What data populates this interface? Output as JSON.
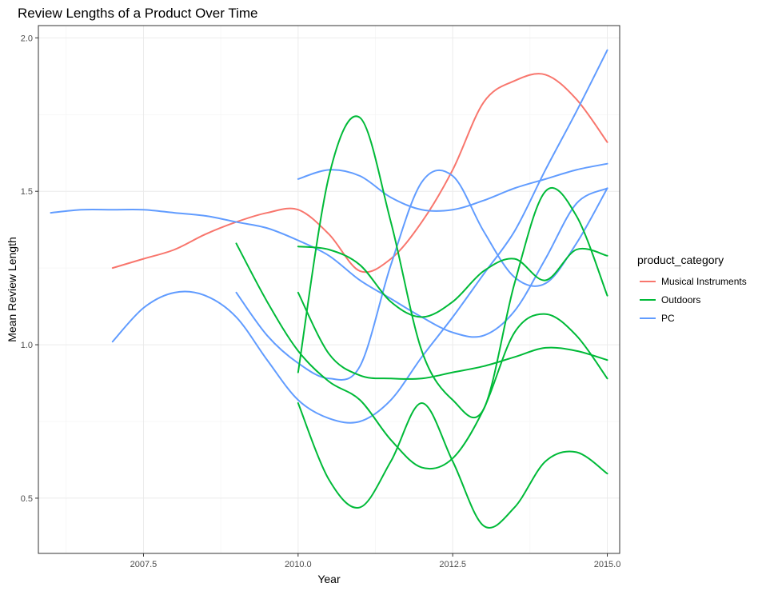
{
  "chart_data": {
    "type": "line",
    "title": "Review Lengths of a Product Over Time",
    "xlabel": "Year",
    "ylabel": "Mean Review Length",
    "xlim": [
      2005.8,
      2015.2
    ],
    "ylim": [
      0.32,
      2.04
    ],
    "x_ticks": [
      2007.5,
      2010.0,
      2012.5,
      2015.0
    ],
    "x_tick_labels": [
      "2007.5",
      "2010.0",
      "2012.5",
      "2015.0"
    ],
    "y_ticks": [
      0.5,
      1.0,
      1.5,
      2.0
    ],
    "y_tick_labels": [
      "0.5",
      "1.0",
      "1.5",
      "2.0"
    ],
    "grid": true,
    "legend": {
      "title": "product_category",
      "position": "right",
      "entries": [
        {
          "label": "Musical Instruments",
          "color": "#f8766d"
        },
        {
          "label": "Outdoors",
          "color": "#00ba38"
        },
        {
          "label": "PC",
          "color": "#619cff"
        }
      ]
    },
    "series": [
      {
        "category": "Musical Instruments",
        "color": "#f8766d",
        "x": [
          2007,
          2007.5,
          2008,
          2008.5,
          2009,
          2009.5,
          2010,
          2010.5,
          2011,
          2011.5,
          2012,
          2012.5,
          2013,
          2013.5,
          2014,
          2014.5,
          2015
        ],
        "y": [
          1.25,
          1.28,
          1.31,
          1.36,
          1.4,
          1.43,
          1.44,
          1.36,
          1.24,
          1.28,
          1.4,
          1.57,
          1.79,
          1.86,
          1.88,
          1.8,
          1.66
        ]
      },
      {
        "category": "PC",
        "color": "#619cff",
        "x": [
          2006,
          2006.5,
          2007,
          2007.5,
          2008,
          2008.5,
          2009,
          2009.5,
          2010,
          2010.5,
          2011,
          2011.5,
          2012,
          2012.5,
          2013,
          2013.5,
          2014,
          2014.5,
          2015
        ],
        "y": [
          1.43,
          1.44,
          1.44,
          1.44,
          1.43,
          1.42,
          1.4,
          1.38,
          1.34,
          1.29,
          1.21,
          1.15,
          1.09,
          1.04,
          1.03,
          1.11,
          1.28,
          1.46,
          1.51
        ]
      },
      {
        "category": "PC",
        "color": "#619cff",
        "x": [
          2007,
          2007.5,
          2008,
          2008.5,
          2009,
          2009.5,
          2010,
          2010.5,
          2011,
          2011.5,
          2012,
          2012.5,
          2013,
          2013.5,
          2014,
          2014.5,
          2015
        ],
        "y": [
          1.01,
          1.12,
          1.17,
          1.16,
          1.09,
          0.95,
          0.82,
          0.76,
          0.75,
          0.82,
          0.96,
          1.09,
          1.23,
          1.37,
          1.57,
          1.76,
          1.96
        ]
      },
      {
        "category": "PC",
        "color": "#619cff",
        "x": [
          2009,
          2009.5,
          2010,
          2010.5,
          2011,
          2011.5,
          2012,
          2012.5,
          2013,
          2013.5,
          2014,
          2014.5,
          2015
        ],
        "y": [
          1.17,
          1.03,
          0.94,
          0.89,
          0.93,
          1.26,
          1.53,
          1.55,
          1.37,
          1.22,
          1.2,
          1.33,
          1.51
        ]
      },
      {
        "category": "PC",
        "color": "#619cff",
        "x": [
          2010,
          2010.5,
          2011,
          2011.5,
          2012,
          2012.5,
          2013,
          2013.5,
          2014,
          2014.5,
          2015
        ],
        "y": [
          1.54,
          1.57,
          1.55,
          1.48,
          1.44,
          1.44,
          1.47,
          1.51,
          1.54,
          1.57,
          1.59
        ]
      },
      {
        "category": "Outdoors",
        "color": "#00ba38",
        "x": [
          2010,
          2010.5,
          2011,
          2011.5,
          2012,
          2012.5,
          2013,
          2013.5,
          2014,
          2014.5,
          2015
        ],
        "y": [
          0.91,
          1.55,
          1.74,
          1.4,
          0.98,
          0.82,
          0.79,
          1.2,
          1.5,
          1.42,
          1.16
        ]
      },
      {
        "category": "Outdoors",
        "color": "#00ba38",
        "x": [
          2009,
          2009.5,
          2010,
          2010.5,
          2011,
          2011.5,
          2012,
          2012.5,
          2013,
          2013.5,
          2014,
          2014.5,
          2015
        ],
        "y": [
          1.33,
          1.14,
          0.98,
          0.88,
          0.82,
          0.69,
          0.6,
          0.63,
          0.79,
          1.04,
          1.1,
          1.03,
          0.89
        ]
      },
      {
        "category": "Outdoors",
        "color": "#00ba38",
        "x": [
          2010,
          2010.5,
          2011,
          2011.5,
          2012,
          2012.5,
          2013,
          2013.5,
          2014,
          2014.5,
          2015
        ],
        "y": [
          1.32,
          1.31,
          1.26,
          1.14,
          1.09,
          1.14,
          1.24,
          1.28,
          1.21,
          1.31,
          1.29
        ]
      },
      {
        "category": "Outdoors",
        "color": "#00ba38",
        "x": [
          2010,
          2010.5,
          2011,
          2011.5,
          2012,
          2012.5,
          2013,
          2013.5,
          2014,
          2014.5,
          2015
        ],
        "y": [
          1.17,
          0.97,
          0.9,
          0.89,
          0.89,
          0.91,
          0.93,
          0.96,
          0.99,
          0.98,
          0.95
        ]
      },
      {
        "category": "Outdoors",
        "color": "#00ba38",
        "x": [
          2010,
          2010.5,
          2011,
          2011.5,
          2012,
          2012.5,
          2013,
          2013.5,
          2014,
          2014.5,
          2015
        ],
        "y": [
          0.81,
          0.56,
          0.47,
          0.62,
          0.81,
          0.62,
          0.41,
          0.47,
          0.62,
          0.65,
          0.58
        ]
      }
    ]
  }
}
